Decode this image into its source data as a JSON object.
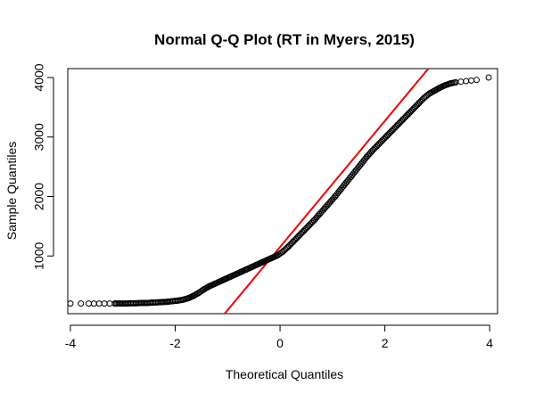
{
  "chart_data": {
    "type": "scatter",
    "title": "Normal Q-Q Plot (RT in Myers, 2015)",
    "xlabel": "Theoretical Quantiles",
    "ylabel": "Sample Quantiles",
    "xlim": [
      -4.05,
      4.15
    ],
    "ylim": [
      30,
      4150
    ],
    "x_ticks": [
      -4,
      -2,
      0,
      2,
      4
    ],
    "y_ticks": [
      1000,
      2000,
      3000,
      4000
    ],
    "grid": false,
    "legend": "none",
    "series": [
      {
        "x": [
          -4.0,
          -3.8,
          -3.65,
          -3.55,
          -3.45,
          -3.35,
          -3.25,
          -3.15,
          -3.05,
          -2.95,
          -2.85,
          -2.75,
          -2.65,
          -2.55,
          -2.45,
          -2.35,
          -2.25,
          -2.15,
          -2.05,
          -1.95,
          -1.85,
          -1.75,
          -1.65,
          -1.55,
          -1.45,
          -1.35,
          -1.25,
          -1.15,
          -1.05,
          -0.95,
          -0.85,
          -0.75,
          -0.65,
          -0.55,
          -0.45,
          -0.35,
          -0.25,
          -0.15,
          -0.05,
          0.05,
          0.15,
          0.25,
          0.35,
          0.45,
          0.55,
          0.65,
          0.75,
          0.85,
          0.95,
          1.05,
          1.15,
          1.25,
          1.35,
          1.45,
          1.55,
          1.65,
          1.75,
          1.85,
          1.95,
          2.05,
          2.15,
          2.25,
          2.35,
          2.45,
          2.55,
          2.65,
          2.75,
          2.85,
          2.95,
          3.05,
          3.15,
          3.25,
          3.35,
          3.45,
          3.55,
          3.65,
          3.75,
          3.98
        ],
        "y": [
          200,
          200,
          200,
          200,
          200,
          200,
          200,
          200,
          200,
          200,
          205,
          205,
          210,
          210,
          215,
          220,
          225,
          230,
          240,
          250,
          265,
          290,
          330,
          380,
          440,
          490,
          530,
          570,
          610,
          650,
          690,
          730,
          770,
          810,
          850,
          890,
          930,
          970,
          1010,
          1070,
          1150,
          1240,
          1330,
          1420,
          1510,
          1600,
          1700,
          1800,
          1900,
          2000,
          2110,
          2220,
          2330,
          2440,
          2550,
          2660,
          2760,
          2850,
          2940,
          3030,
          3120,
          3210,
          3300,
          3390,
          3480,
          3570,
          3660,
          3730,
          3780,
          3830,
          3870,
          3900,
          3920,
          3930,
          3940,
          3950,
          3960,
          4000
        ],
        "marker": "open-circle",
        "color": "#000000"
      }
    ],
    "reference_line": {
      "slope": 1060,
      "intercept": 1150,
      "color": "#ee0000"
    }
  }
}
